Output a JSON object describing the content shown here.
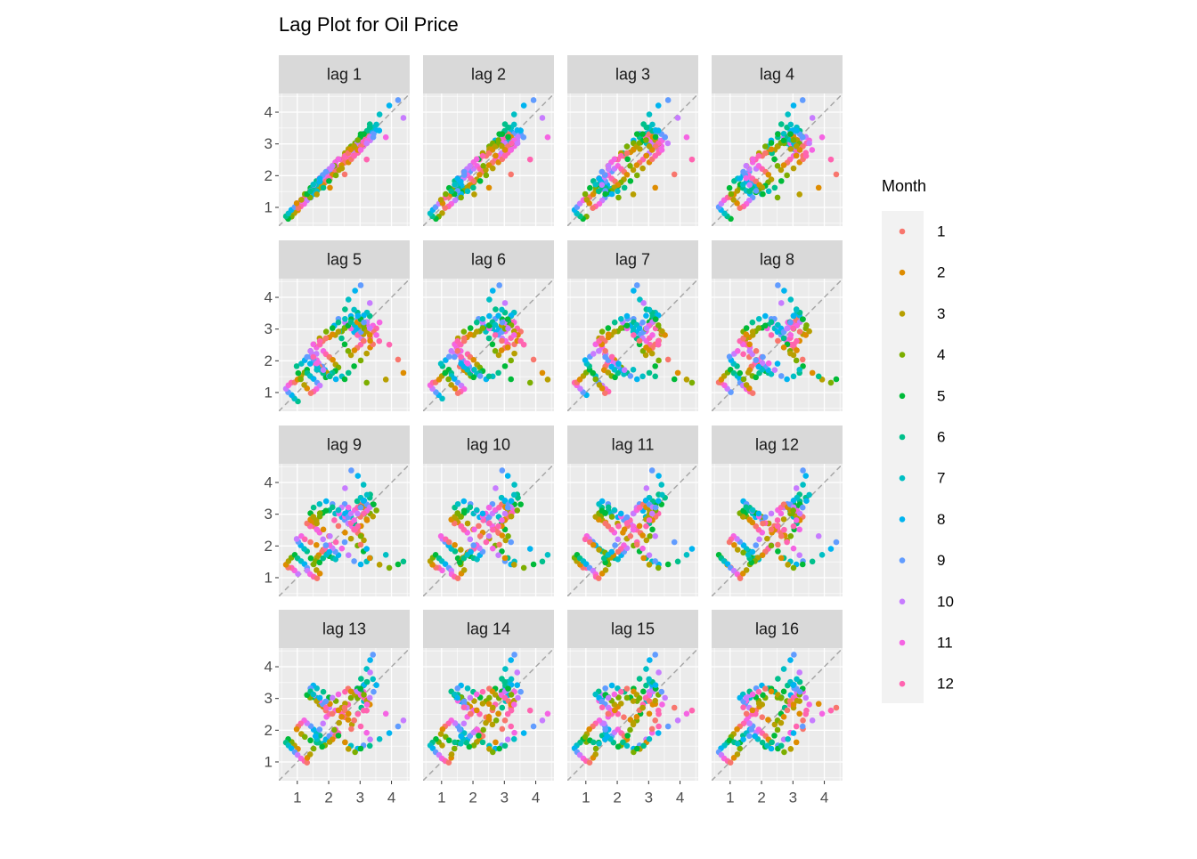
{
  "chart_data": {
    "type": "lag",
    "title": "Lag Plot for Oil Price",
    "legend_title": "Month",
    "panels": [
      {
        "label": "lag 1",
        "lag": 1
      },
      {
        "label": "lag 2",
        "lag": 2
      },
      {
        "label": "lag 3",
        "lag": 3
      },
      {
        "label": "lag 4",
        "lag": 4
      },
      {
        "label": "lag 5",
        "lag": 5
      },
      {
        "label": "lag 6",
        "lag": 6
      },
      {
        "label": "lag 7",
        "lag": 7
      },
      {
        "label": "lag 8",
        "lag": 8
      },
      {
        "label": "lag 9",
        "lag": 9
      },
      {
        "label": "lag 10",
        "lag": 10
      },
      {
        "label": "lag 11",
        "lag": 11
      },
      {
        "label": "lag 12",
        "lag": 12
      },
      {
        "label": "lag 13",
        "lag": 13
      },
      {
        "label": "lag 14",
        "lag": 14
      },
      {
        "label": "lag 15",
        "lag": 15
      },
      {
        "label": "lag 16",
        "lag": 16
      }
    ],
    "series": [
      {
        "name": "1",
        "color": "#F8766D",
        "values": [
          1.02,
          1.32,
          0.98,
          2.12,
          1.82,
          2.62,
          2.41,
          2.63,
          2.31,
          2.52,
          2.04,
          2.71,
          3.31,
          2.92
        ]
      },
      {
        "name": "2",
        "color": "#DE8C00",
        "values": [
          0.91,
          1.41,
          1.13,
          2.03,
          1.71,
          2.74,
          2.33,
          2.42,
          2.52,
          2.63,
          1.62,
          2.83,
          3.22,
          2.81
        ]
      },
      {
        "name": "3",
        "color": "#B79F00",
        "values": [
          0.82,
          1.52,
          1.24,
          1.88,
          1.63,
          2.81,
          2.18,
          2.23,
          2.71,
          2.84,
          1.41,
          2.92,
          3.12,
          2.93
        ]
      },
      {
        "name": "4",
        "color": "#7CAE00",
        "values": [
          0.71,
          1.63,
          1.42,
          1.79,
          1.52,
          2.93,
          2.31,
          2.01,
          2.92,
          3.02,
          1.31,
          3.03,
          3.01,
          3.12
        ]
      },
      {
        "name": "5",
        "color": "#00BA38",
        "values": [
          0.64,
          1.72,
          1.61,
          1.68,
          1.48,
          3.04,
          2.52,
          1.83,
          3.03,
          3.31,
          1.42,
          3.11,
          3.22,
          3.31
        ]
      },
      {
        "name": "6",
        "color": "#00C08B",
        "values": [
          0.72,
          1.61,
          1.83,
          1.62,
          1.61,
          3.12,
          2.71,
          1.62,
          3.21,
          3.62,
          1.51,
          3.22,
          3.41,
          3.52
        ]
      },
      {
        "name": "7",
        "color": "#00BFC4",
        "values": [
          0.81,
          1.52,
          1.91,
          1.58,
          1.72,
          3.02,
          2.92,
          1.51,
          3.32,
          3.93,
          1.72,
          3.13,
          3.52,
          3.61
        ]
      },
      {
        "name": "8",
        "color": "#00B4F0",
        "values": [
          0.92,
          1.43,
          2.02,
          1.71,
          1.81,
          2.91,
          3.11,
          1.42,
          3.41,
          4.21,
          1.91,
          3.02,
          3.43,
          3.42
        ]
      },
      {
        "name": "9",
        "color": "#619CFF",
        "values": [
          1.01,
          1.31,
          2.13,
          1.82,
          2.02,
          2.82,
          3.32,
          1.52,
          3.32,
          4.38,
          2.12,
          2.91,
          3.31,
          3.21
        ]
      },
      {
        "name": "10",
        "color": "#C77CFF",
        "values": [
          1.12,
          1.22,
          2.22,
          1.93,
          2.21,
          2.71,
          3.21,
          1.71,
          3.11,
          3.82,
          2.31,
          3.02,
          3.22,
          3.02
        ]
      },
      {
        "name": "11",
        "color": "#F564E3",
        "values": [
          1.23,
          1.11,
          2.31,
          2.02,
          2.42,
          2.62,
          3.02,
          1.92,
          2.93,
          3.21,
          2.52,
          3.13,
          3.11,
          2.81
        ]
      },
      {
        "name": "12",
        "color": "#FF64B0",
        "values": [
          1.31,
          1.03,
          2.21,
          1.91,
          2.51,
          2.51,
          2.81,
          2.12,
          2.72,
          2.51,
          2.62,
          3.21,
          3.02,
          2.62
        ]
      }
    ],
    "xlim": [
      0.41,
      4.58
    ],
    "ylim": [
      0.41,
      4.59
    ],
    "xticks": [
      1,
      2,
      3,
      4
    ],
    "yticks": [
      1,
      2,
      3,
      4
    ],
    "grid": true
  }
}
